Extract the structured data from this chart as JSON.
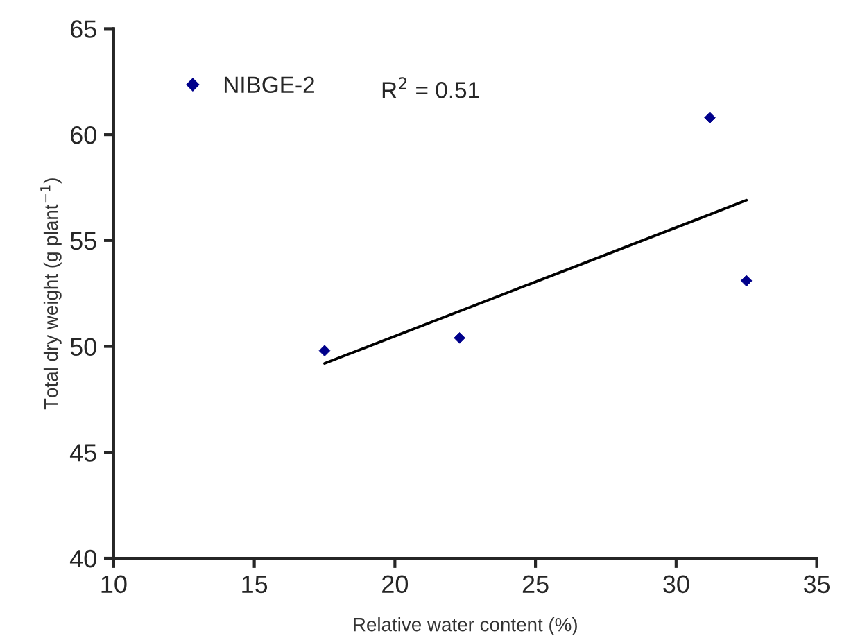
{
  "chart_data": {
    "type": "scatter",
    "xlabel": "Relative water content (%)",
    "ylabel": "Total dry weight (g plant$^{−1}$)",
    "xlim": [
      10,
      35
    ],
    "xticks": [
      10,
      15,
      20,
      25,
      30,
      35
    ],
    "ylim": [
      40,
      65
    ],
    "yticks": [
      40,
      45,
      50,
      55,
      60,
      65
    ],
    "grid": false,
    "legend": "top left",
    "marker": "diamond",
    "annotations": [
      "R$^{2}$ = 0.51"
    ],
    "series": [
      {
        "name": "NIBGE-2",
        "type": "scatter",
        "color": "#00008b",
        "x": [
          17.5,
          22.3,
          31.2,
          32.5
        ],
        "values": [
          49.8,
          50.4,
          60.8,
          53.1
        ]
      },
      {
        "type": "line",
        "color": "#000000",
        "x": [
          17.5,
          32.5
        ],
        "values": [
          49.2,
          56.9
        ],
        "marker": "none",
        "line_style": "solid"
      }
    ]
  }
}
